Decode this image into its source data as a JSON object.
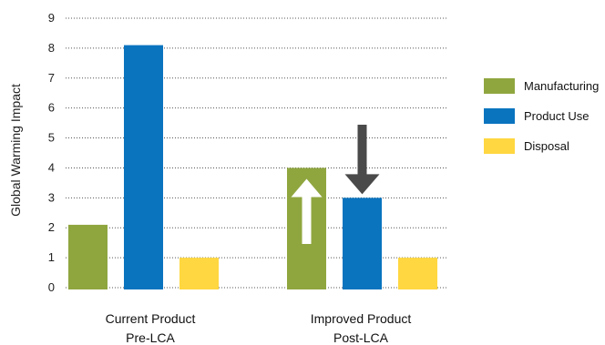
{
  "chart_data": {
    "type": "bar",
    "ylabel": "Global Warming Impact",
    "ylim": [
      0,
      9
    ],
    "yticks": [
      0,
      1,
      2,
      3,
      4,
      5,
      6,
      7,
      8,
      9
    ],
    "grid": "dotted-horizontal",
    "legend_position": "right",
    "groups": [
      {
        "label_lines": [
          "Current Product",
          "Pre-LCA"
        ]
      },
      {
        "label_lines": [
          "Improved Product",
          "Post-LCA"
        ]
      }
    ],
    "series": [
      {
        "name": "Manufacturing",
        "color": "#8fa63f",
        "values": [
          2.1,
          4.0
        ]
      },
      {
        "name": "Product Use",
        "color": "#0a74bf",
        "values": [
          8.1,
          3.0
        ]
      },
      {
        "name": "Disposal",
        "color": "#ffd740",
        "values": [
          1.0,
          1.0
        ]
      }
    ],
    "annotations": [
      {
        "type": "arrow-up",
        "group": 1,
        "series": 0,
        "color": "#ffffff"
      },
      {
        "type": "arrow-down",
        "group": 1,
        "series": 1,
        "color": "#4a4a4a"
      }
    ]
  }
}
